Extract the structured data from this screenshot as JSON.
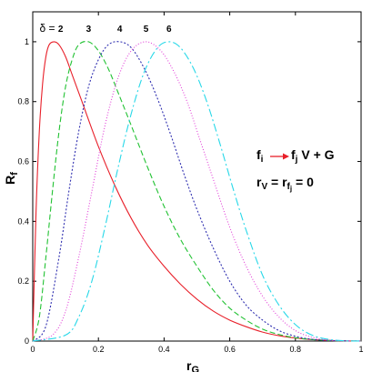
{
  "chart_data": {
    "type": "line",
    "xlabel": "r",
    "xlabel_sub": "G",
    "ylabel": "R",
    "ylabel_sub": "f",
    "xlim": [
      0,
      1
    ],
    "ylim": [
      0,
      1.1
    ],
    "xticks": [
      0,
      0.2,
      0.4,
      0.6,
      0.8,
      1
    ],
    "xtick_labels": [
      "0",
      "0.2",
      "0.4",
      "0.6",
      "0.8",
      "1"
    ],
    "yticks": [
      0,
      0.2,
      0.4,
      0.6,
      0.8,
      1
    ],
    "ytick_labels": [
      "0",
      "0.2",
      "0.4",
      "0.6",
      "0.8",
      "1"
    ],
    "grid": false,
    "delta_prefix": "δ = ",
    "series": [
      {
        "label": "2",
        "color": "#e8202a",
        "dash": "solid",
        "x": [
          0,
          0.01,
          0.02,
          0.03,
          0.04,
          0.05,
          0.065,
          0.08,
          0.1,
          0.12,
          0.15,
          0.2,
          0.25,
          0.3,
          0.35,
          0.4,
          0.45,
          0.5,
          0.55,
          0.6,
          0.65,
          0.7,
          0.75,
          0.8,
          0.85,
          0.9,
          0.95,
          1.0
        ],
        "y": [
          0,
          0.43,
          0.7,
          0.86,
          0.95,
          0.99,
          1.0,
          0.99,
          0.95,
          0.89,
          0.8,
          0.65,
          0.52,
          0.41,
          0.32,
          0.25,
          0.19,
          0.14,
          0.1,
          0.07,
          0.048,
          0.03,
          0.018,
          0.01,
          0.005,
          0.002,
          0.0005,
          0
        ]
      },
      {
        "label": "3",
        "color": "#22c233",
        "dash": "6,3",
        "x": [
          0,
          0.02,
          0.04,
          0.06,
          0.08,
          0.1,
          0.12,
          0.14,
          0.17,
          0.2,
          0.23,
          0.26,
          0.3,
          0.35,
          0.4,
          0.45,
          0.5,
          0.55,
          0.6,
          0.65,
          0.7,
          0.75,
          0.8,
          0.85,
          0.9,
          0.95,
          1.0
        ],
        "y": [
          0,
          0.08,
          0.28,
          0.5,
          0.7,
          0.85,
          0.94,
          0.99,
          1.0,
          0.97,
          0.91,
          0.83,
          0.72,
          0.58,
          0.45,
          0.34,
          0.25,
          0.17,
          0.11,
          0.07,
          0.04,
          0.022,
          0.011,
          0.005,
          0.002,
          0.0005,
          0
        ]
      },
      {
        "label": "4",
        "color": "#2f2fb0",
        "dash": "2,2",
        "x": [
          0,
          0.04,
          0.08,
          0.11,
          0.14,
          0.17,
          0.2,
          0.23,
          0.265,
          0.3,
          0.34,
          0.38,
          0.42,
          0.46,
          0.5,
          0.55,
          0.6,
          0.65,
          0.7,
          0.75,
          0.8,
          0.85,
          0.9,
          0.95,
          1.0
        ],
        "y": [
          0,
          0.05,
          0.28,
          0.5,
          0.7,
          0.85,
          0.94,
          0.99,
          1.0,
          0.98,
          0.91,
          0.81,
          0.69,
          0.56,
          0.44,
          0.31,
          0.2,
          0.12,
          0.07,
          0.035,
          0.016,
          0.006,
          0.002,
          0.0005,
          0
        ]
      },
      {
        "label": "5",
        "color": "#e23fd8",
        "dash": "1,2",
        "x": [
          0,
          0.06,
          0.1,
          0.14,
          0.18,
          0.22,
          0.26,
          0.3,
          0.345,
          0.39,
          0.43,
          0.47,
          0.51,
          0.55,
          0.6,
          0.65,
          0.7,
          0.75,
          0.8,
          0.85,
          0.9,
          0.95,
          1.0
        ],
        "y": [
          0,
          0.02,
          0.1,
          0.28,
          0.5,
          0.72,
          0.88,
          0.97,
          1.0,
          0.97,
          0.9,
          0.8,
          0.67,
          0.54,
          0.38,
          0.25,
          0.15,
          0.08,
          0.035,
          0.013,
          0.004,
          0.001,
          0
        ]
      },
      {
        "label": "6",
        "color": "#28d8e8",
        "dash": "9,3,2,3",
        "x": [
          0,
          0.1,
          0.14,
          0.18,
          0.22,
          0.26,
          0.3,
          0.34,
          0.38,
          0.415,
          0.45,
          0.49,
          0.53,
          0.57,
          0.61,
          0.65,
          0.7,
          0.75,
          0.8,
          0.85,
          0.9,
          0.95,
          1.0
        ],
        "y": [
          0,
          0.02,
          0.08,
          0.2,
          0.38,
          0.58,
          0.76,
          0.9,
          0.98,
          1.0,
          0.98,
          0.91,
          0.8,
          0.66,
          0.51,
          0.37,
          0.22,
          0.12,
          0.055,
          0.02,
          0.006,
          0.001,
          0
        ]
      }
    ],
    "annotations": {
      "process": {
        "f_i": "f",
        "f_i_sub": "i",
        "f_j": "f",
        "f_j_sub": "j",
        "rest": " V + G",
        "arrow_color": "#e8202a"
      },
      "condition": {
        "r1": "r",
        "r1_sub": "V",
        "eq1": " = r",
        "r2_sub": "f",
        "r2_subsub": "j",
        "eq2": " = 0"
      }
    }
  }
}
